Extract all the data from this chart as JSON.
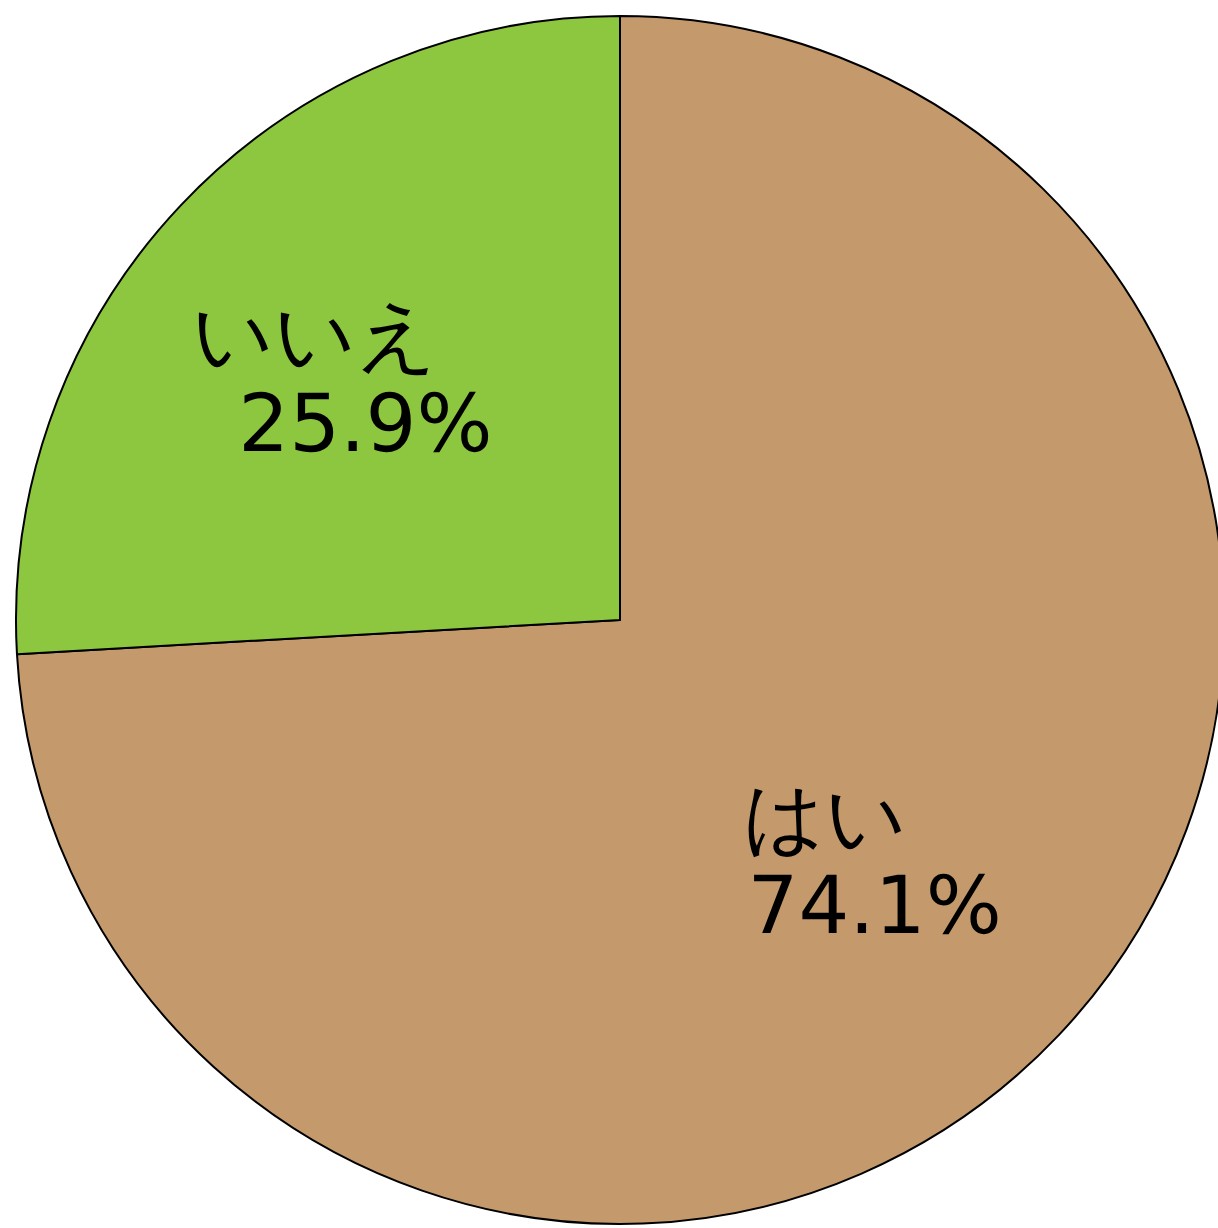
{
  "chart_data": {
    "type": "pie",
    "categories": [
      "はい",
      "いいえ"
    ],
    "values": [
      74.1,
      25.9
    ],
    "colors": [
      "#c49a6c",
      "#8dc63f"
    ],
    "value_labels": [
      "74.1%",
      "25.9%"
    ],
    "legend": false
  }
}
